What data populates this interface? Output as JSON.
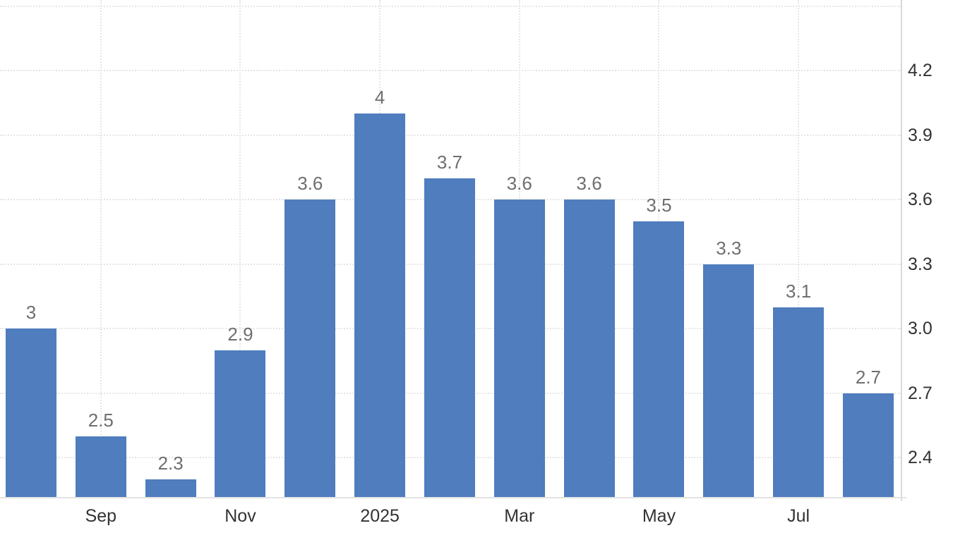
{
  "chart_data": {
    "type": "bar",
    "title": "",
    "xlabel": "",
    "ylabel": "",
    "legend": "none",
    "grid": "dotted, horizontal and vertical at labeled ticks",
    "values": [
      3,
      2.5,
      2.3,
      2.9,
      3.6,
      4,
      3.7,
      3.6,
      3.6,
      3.5,
      3.3,
      3.1,
      2.7
    ],
    "data_labels": [
      "3",
      "2.5",
      "2.3",
      "2.9",
      "3.6",
      "4",
      "3.7",
      "3.6",
      "3.6",
      "3.5",
      "3.3",
      "3.1",
      "2.7"
    ],
    "x_tick_labels": [
      {
        "label": "Sep",
        "bar_index": 1
      },
      {
        "label": "Nov",
        "bar_index": 3
      },
      {
        "label": "2025",
        "bar_index": 5
      },
      {
        "label": "Mar",
        "bar_index": 7
      },
      {
        "label": "May",
        "bar_index": 9
      },
      {
        "label": "Jul",
        "bar_index": 11
      }
    ],
    "y_tick_labels": [
      "4.2",
      "3.9",
      "3.6",
      "3.3",
      "3.0",
      "2.7",
      "2.4"
    ],
    "y_gridline_values": [
      4.5,
      4.2,
      3.9,
      3.6,
      3.3,
      3.0,
      2.7,
      2.4
    ],
    "ylim": [
      2.22,
      4.53
    ],
    "y_axis_side": "right",
    "colors": {
      "bar": "#4f7dbe",
      "grid": "#e6e6e6",
      "y_axis_line": "#d9d9d9",
      "x_axis_line": "#e3e3e3",
      "tick_label": "#333333",
      "data_label": "#6f6f6f",
      "background": "#ffffff"
    }
  }
}
